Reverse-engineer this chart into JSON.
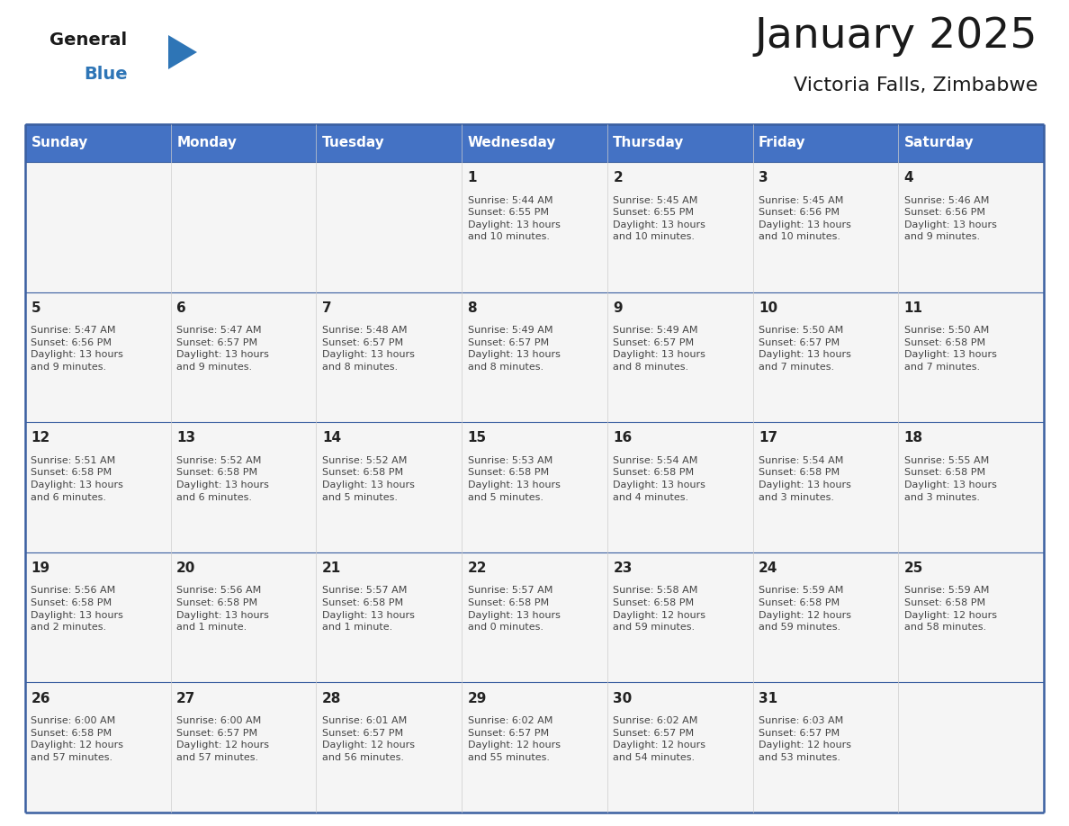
{
  "title": "January 2025",
  "subtitle": "Victoria Falls, Zimbabwe",
  "days_of_week": [
    "Sunday",
    "Monday",
    "Tuesday",
    "Wednesday",
    "Thursday",
    "Friday",
    "Saturday"
  ],
  "header_bg": "#4472C4",
  "header_text": "#FFFFFF",
  "cell_bg": "#F5F5F5",
  "cell_border_color": "#3A5FA0",
  "row_divider_color": "#3A5FA0",
  "day_number_color": "#222222",
  "text_color": "#444444",
  "title_color": "#1a1a1a",
  "subtitle_color": "#1a1a1a",
  "logo_general_color": "#1a1a1a",
  "logo_blue_color": "#2E75B6",
  "weeks": [
    [
      {
        "day": null,
        "info": null
      },
      {
        "day": null,
        "info": null
      },
      {
        "day": null,
        "info": null
      },
      {
        "day": 1,
        "info": "Sunrise: 5:44 AM\nSunset: 6:55 PM\nDaylight: 13 hours\nand 10 minutes."
      },
      {
        "day": 2,
        "info": "Sunrise: 5:45 AM\nSunset: 6:55 PM\nDaylight: 13 hours\nand 10 minutes."
      },
      {
        "day": 3,
        "info": "Sunrise: 5:45 AM\nSunset: 6:56 PM\nDaylight: 13 hours\nand 10 minutes."
      },
      {
        "day": 4,
        "info": "Sunrise: 5:46 AM\nSunset: 6:56 PM\nDaylight: 13 hours\nand 9 minutes."
      }
    ],
    [
      {
        "day": 5,
        "info": "Sunrise: 5:47 AM\nSunset: 6:56 PM\nDaylight: 13 hours\nand 9 minutes."
      },
      {
        "day": 6,
        "info": "Sunrise: 5:47 AM\nSunset: 6:57 PM\nDaylight: 13 hours\nand 9 minutes."
      },
      {
        "day": 7,
        "info": "Sunrise: 5:48 AM\nSunset: 6:57 PM\nDaylight: 13 hours\nand 8 minutes."
      },
      {
        "day": 8,
        "info": "Sunrise: 5:49 AM\nSunset: 6:57 PM\nDaylight: 13 hours\nand 8 minutes."
      },
      {
        "day": 9,
        "info": "Sunrise: 5:49 AM\nSunset: 6:57 PM\nDaylight: 13 hours\nand 8 minutes."
      },
      {
        "day": 10,
        "info": "Sunrise: 5:50 AM\nSunset: 6:57 PM\nDaylight: 13 hours\nand 7 minutes."
      },
      {
        "day": 11,
        "info": "Sunrise: 5:50 AM\nSunset: 6:58 PM\nDaylight: 13 hours\nand 7 minutes."
      }
    ],
    [
      {
        "day": 12,
        "info": "Sunrise: 5:51 AM\nSunset: 6:58 PM\nDaylight: 13 hours\nand 6 minutes."
      },
      {
        "day": 13,
        "info": "Sunrise: 5:52 AM\nSunset: 6:58 PM\nDaylight: 13 hours\nand 6 minutes."
      },
      {
        "day": 14,
        "info": "Sunrise: 5:52 AM\nSunset: 6:58 PM\nDaylight: 13 hours\nand 5 minutes."
      },
      {
        "day": 15,
        "info": "Sunrise: 5:53 AM\nSunset: 6:58 PM\nDaylight: 13 hours\nand 5 minutes."
      },
      {
        "day": 16,
        "info": "Sunrise: 5:54 AM\nSunset: 6:58 PM\nDaylight: 13 hours\nand 4 minutes."
      },
      {
        "day": 17,
        "info": "Sunrise: 5:54 AM\nSunset: 6:58 PM\nDaylight: 13 hours\nand 3 minutes."
      },
      {
        "day": 18,
        "info": "Sunrise: 5:55 AM\nSunset: 6:58 PM\nDaylight: 13 hours\nand 3 minutes."
      }
    ],
    [
      {
        "day": 19,
        "info": "Sunrise: 5:56 AM\nSunset: 6:58 PM\nDaylight: 13 hours\nand 2 minutes."
      },
      {
        "day": 20,
        "info": "Sunrise: 5:56 AM\nSunset: 6:58 PM\nDaylight: 13 hours\nand 1 minute."
      },
      {
        "day": 21,
        "info": "Sunrise: 5:57 AM\nSunset: 6:58 PM\nDaylight: 13 hours\nand 1 minute."
      },
      {
        "day": 22,
        "info": "Sunrise: 5:57 AM\nSunset: 6:58 PM\nDaylight: 13 hours\nand 0 minutes."
      },
      {
        "day": 23,
        "info": "Sunrise: 5:58 AM\nSunset: 6:58 PM\nDaylight: 12 hours\nand 59 minutes."
      },
      {
        "day": 24,
        "info": "Sunrise: 5:59 AM\nSunset: 6:58 PM\nDaylight: 12 hours\nand 59 minutes."
      },
      {
        "day": 25,
        "info": "Sunrise: 5:59 AM\nSunset: 6:58 PM\nDaylight: 12 hours\nand 58 minutes."
      }
    ],
    [
      {
        "day": 26,
        "info": "Sunrise: 6:00 AM\nSunset: 6:58 PM\nDaylight: 12 hours\nand 57 minutes."
      },
      {
        "day": 27,
        "info": "Sunrise: 6:00 AM\nSunset: 6:57 PM\nDaylight: 12 hours\nand 57 minutes."
      },
      {
        "day": 28,
        "info": "Sunrise: 6:01 AM\nSunset: 6:57 PM\nDaylight: 12 hours\nand 56 minutes."
      },
      {
        "day": 29,
        "info": "Sunrise: 6:02 AM\nSunset: 6:57 PM\nDaylight: 12 hours\nand 55 minutes."
      },
      {
        "day": 30,
        "info": "Sunrise: 6:02 AM\nSunset: 6:57 PM\nDaylight: 12 hours\nand 54 minutes."
      },
      {
        "day": 31,
        "info": "Sunrise: 6:03 AM\nSunset: 6:57 PM\nDaylight: 12 hours\nand 53 minutes."
      },
      {
        "day": null,
        "info": null
      }
    ]
  ],
  "n_weeks": 5,
  "n_cols": 7
}
